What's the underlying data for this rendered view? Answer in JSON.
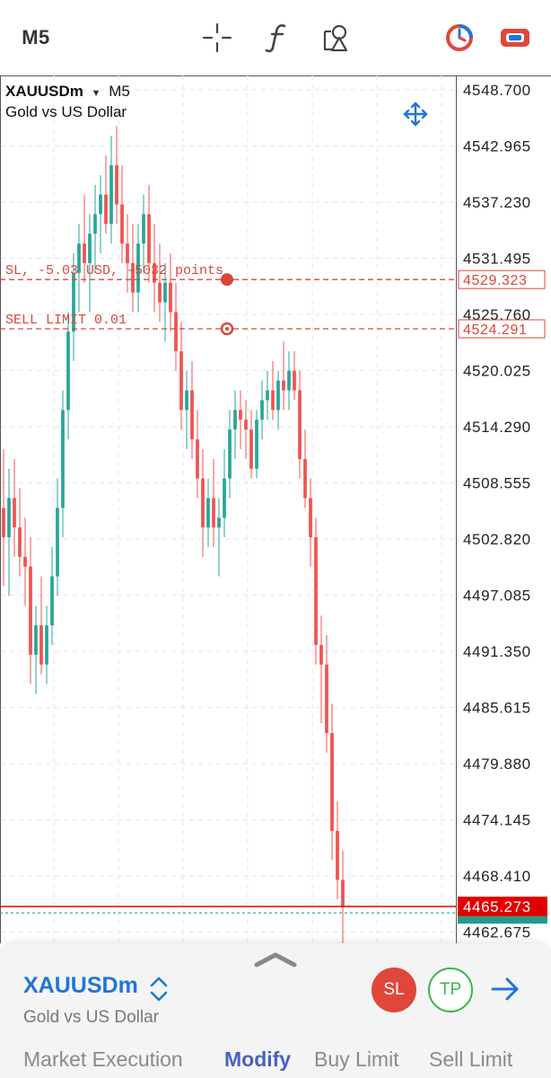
{
  "toolbar": {
    "timeframe": "M5",
    "icons": [
      "crosshair-icon",
      "indicators-icon",
      "objects-icon",
      "trading-icon",
      "settings-toggle-icon"
    ]
  },
  "chart": {
    "symbol": "XAUUSDm",
    "timeframe": "M5",
    "description": "Gold vs US Dollar",
    "price_labels": [
      "4548.700",
      "4542.965",
      "4537.230",
      "4531.495",
      "4525.760",
      "4520.025",
      "4514.290",
      "4508.555",
      "4502.820",
      "4497.085",
      "4491.350",
      "4485.615",
      "4479.880",
      "4474.145",
      "4468.410",
      "4462.675"
    ],
    "sl_label": "SL, -5.03 USD, -5032 points",
    "sl_price": "4529.323",
    "sell_limit_label": "SELL LIMIT 0.01",
    "sell_limit_price": "4524.291",
    "bid_price": "4465.273",
    "colors": {
      "bull": "#26a69a",
      "bear": "#ef5350",
      "order_line": "#d9463a",
      "bid_line": "#e00000",
      "ask_line": "#2aa198",
      "grid": "#e6e6e6"
    }
  },
  "chart_data": {
    "type": "candlestick",
    "title": "XAUUSDm M5",
    "ylim": [
      4460,
      4550
    ],
    "ohlc": [
      [
        4506,
        4512,
        4498,
        4503
      ],
      [
        4503,
        4510,
        4497,
        4507
      ],
      [
        4507,
        4511,
        4501,
        4504
      ],
      [
        4504,
        4508,
        4499,
        4501
      ],
      [
        4501,
        4505,
        4496,
        4500
      ],
      [
        4500,
        4503,
        4488,
        4491
      ],
      [
        4491,
        4496,
        4487,
        4494
      ],
      [
        4494,
        4499,
        4489,
        4490
      ],
      [
        4490,
        4496,
        4488,
        4494
      ],
      [
        4494,
        4502,
        4492,
        4499
      ],
      [
        4499,
        4509,
        4497,
        4506
      ],
      [
        4506,
        4518,
        4503,
        4516
      ],
      [
        4516,
        4526,
        4513,
        4524
      ],
      [
        4524,
        4532,
        4521,
        4530
      ],
      [
        4530,
        4535,
        4526,
        4533
      ],
      [
        4533,
        4538,
        4529,
        4531
      ],
      [
        4531,
        4536,
        4526,
        4534
      ],
      [
        4534,
        4539,
        4530,
        4536
      ],
      [
        4536,
        4540,
        4532,
        4538
      ],
      [
        4538,
        4542,
        4534,
        4535
      ],
      [
        4535,
        4544,
        4533,
        4541
      ],
      [
        4541,
        4545,
        4535,
        4537
      ],
      [
        4537,
        4541,
        4531,
        4533
      ],
      [
        4533,
        4536,
        4528,
        4531
      ],
      [
        4531,
        4535,
        4526,
        4528
      ],
      [
        4528,
        4535,
        4526,
        4533
      ],
      [
        4533,
        4538,
        4530,
        4536
      ],
      [
        4536,
        4539,
        4529,
        4531
      ],
      [
        4531,
        4535,
        4526,
        4529
      ],
      [
        4529,
        4533,
        4525,
        4527
      ],
      [
        4527,
        4531,
        4523,
        4529
      ],
      [
        4529,
        4532,
        4524,
        4526
      ],
      [
        4526,
        4529,
        4520,
        4522
      ],
      [
        4522,
        4525,
        4514,
        4516
      ],
      [
        4516,
        4520,
        4512,
        4518
      ],
      [
        4518,
        4521,
        4511,
        4513
      ],
      [
        4513,
        4516,
        4507,
        4509
      ],
      [
        4509,
        4512,
        4501,
        4504
      ],
      [
        4504,
        4509,
        4502,
        4507
      ],
      [
        4507,
        4511,
        4502,
        4504
      ],
      [
        4504,
        4507,
        4499,
        4505
      ],
      [
        4505,
        4512,
        4503,
        4509
      ],
      [
        4509,
        4516,
        4507,
        4514
      ],
      [
        4514,
        4518,
        4511,
        4516
      ],
      [
        4516,
        4518,
        4512,
        4515
      ],
      [
        4515,
        4517,
        4511,
        4514
      ],
      [
        4514,
        4516,
        4509,
        4510
      ],
      [
        4510,
        4516,
        4509,
        4515
      ],
      [
        4515,
        4519,
        4513,
        4517
      ],
      [
        4517,
        4520,
        4515,
        4518
      ],
      [
        4518,
        4521,
        4515,
        4516
      ],
      [
        4516,
        4520,
        4514,
        4519
      ],
      [
        4519,
        4523,
        4516,
        4518
      ],
      [
        4518,
        4522,
        4516,
        4520
      ],
      [
        4520,
        4522,
        4517,
        4518
      ],
      [
        4518,
        4520,
        4509,
        4511
      ],
      [
        4511,
        4514,
        4506,
        4507
      ],
      [
        4507,
        4509,
        4500,
        4503
      ],
      [
        4503,
        4505,
        4490,
        4492
      ],
      [
        4492,
        4495,
        4484,
        4490
      ],
      [
        4490,
        4493,
        4481,
        4483
      ],
      [
        4483,
        4486,
        4470,
        4473
      ],
      [
        4473,
        4476,
        4466,
        4468
      ],
      [
        4468,
        4471,
        4461,
        4465.273
      ]
    ],
    "levels": [
      {
        "name": "SL",
        "price": 4529.323
      },
      {
        "name": "SELL LIMIT 0.01",
        "price": 4524.291
      },
      {
        "name": "Bid",
        "price": 4465.273
      }
    ]
  },
  "panel": {
    "symbol": "XAUUSDm",
    "description": "Gold vs US Dollar",
    "sl_button": "SL",
    "tp_button": "TP"
  },
  "tabs": [
    {
      "label": "Market Execution",
      "active": false
    },
    {
      "label": "Modify",
      "active": true
    },
    {
      "label": "Buy Limit",
      "active": false
    },
    {
      "label": "Sell Limit",
      "active": false
    }
  ]
}
